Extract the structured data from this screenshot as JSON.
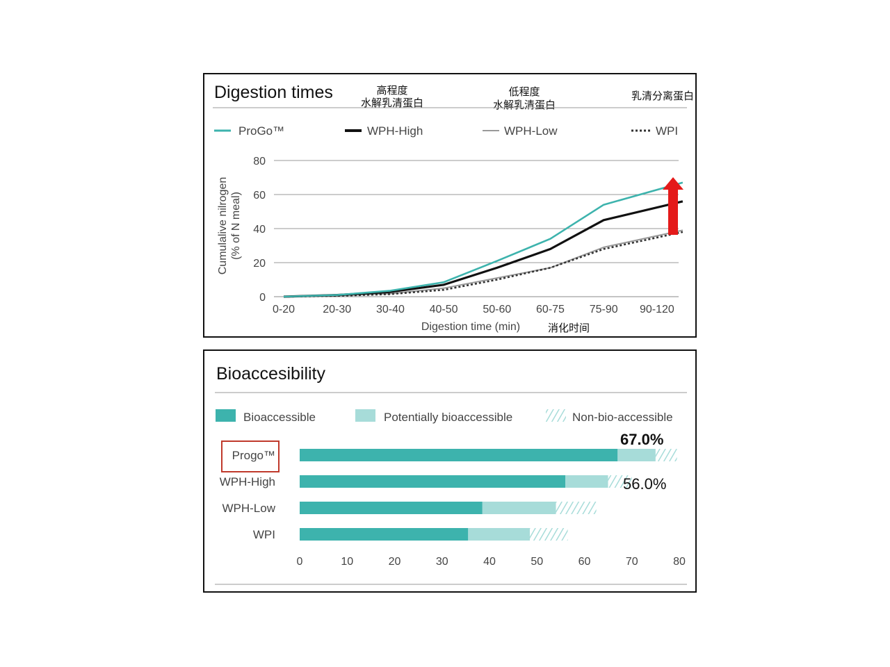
{
  "chart_data": [
    {
      "type": "line",
      "title": "Digestion times",
      "annotations": {
        "wph_high_cn": [
          "高程度",
          "水解乳清蛋白"
        ],
        "wph_low_cn": [
          "低程度",
          "水解乳清蛋白"
        ],
        "wpi_cn": "乳清分离蛋白",
        "xlabel_cn": "消化时间"
      },
      "xlabel": "Digestion time (min)",
      "ylabel": [
        "Cumulalive nilrogen",
        "(% of N meal)"
      ],
      "categories": [
        "0-20",
        "20-30",
        "30-40",
        "40-50",
        "50-60",
        "60-75",
        "75-90",
        "90-120"
      ],
      "ylim": [
        0,
        80
      ],
      "yticks": [
        0,
        20,
        40,
        60,
        80
      ],
      "grid": true,
      "legend": "top",
      "series": [
        {
          "name": "ProGo™",
          "color": "#3db3ad",
          "style": "solid",
          "values": [
            0,
            1,
            3.5,
            8.5,
            21,
            34,
            54,
            67
          ]
        },
        {
          "name": "WPH-High",
          "color": "#111111",
          "style": "solid",
          "values": [
            0,
            1,
            2.8,
            7,
            17,
            28,
            45,
            56
          ]
        },
        {
          "name": "WPH-Low",
          "color": "#999999",
          "style": "solid",
          "values": [
            0,
            0.6,
            1.8,
            5,
            11,
            17,
            29,
            39
          ]
        },
        {
          "name": "WPI",
          "color": "#333333",
          "style": "dotted",
          "values": [
            0,
            0.5,
            1.5,
            4,
            10,
            17,
            28,
            38
          ]
        }
      ],
      "arrow_color": "#e41a1a"
    },
    {
      "type": "bar",
      "orientation": "horizontal",
      "stacked": true,
      "title": "Bioaccesibility",
      "categories": [
        "Progo™",
        "WPH-High",
        "WPH-Low",
        "WPI"
      ],
      "highlight_category": "Progo™",
      "xlim": [
        0,
        80
      ],
      "xticks": [
        0,
        10,
        20,
        30,
        40,
        50,
        60,
        70,
        80
      ],
      "legend": "top",
      "series": [
        {
          "name": "Bioaccessible",
          "color": "#3db3ad",
          "values": [
            67,
            56,
            38.5,
            35.5
          ]
        },
        {
          "name": "Potentially bioaccessible",
          "color": "#a7dcd9",
          "values": [
            8,
            9,
            15.5,
            13
          ]
        },
        {
          "name": "Non-bio-accessible",
          "color": "#a7dcd9",
          "pattern": "hatch",
          "values": [
            4.5,
            5,
            8.5,
            8
          ]
        }
      ],
      "value_labels": [
        "67.0%",
        "56.0%"
      ]
    }
  ]
}
